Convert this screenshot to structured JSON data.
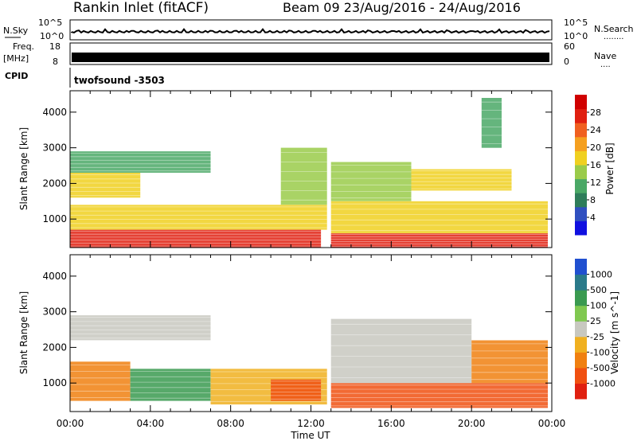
{
  "header": {
    "title": "Rankin Inlet (fitACF)",
    "beam_range": "Beam 09  23/Aug/2016 - 24/Aug/2016"
  },
  "strip_panels": {
    "nsky": {
      "label": "N.Sky",
      "ticks": [
        "10^5",
        "10^0"
      ],
      "right_label": "N.Search",
      "right_ticks": [
        "10^5",
        "10^0"
      ],
      "right_dots": "........"
    },
    "freq": {
      "label_line1": "Freq.",
      "label_line2": "[MHz]",
      "ticks": [
        "18",
        "8"
      ],
      "right_label": "Nave",
      "right_ticks": [
        "60",
        "0"
      ],
      "right_dots": "...."
    },
    "cpid": {
      "label": "CPID",
      "value": "twofsound  -3503"
    }
  },
  "x_axis": {
    "label": "Time UT",
    "ticks": [
      "00:00",
      "04:00",
      "08:00",
      "12:00",
      "16:00",
      "20:00",
      "00:00"
    ]
  },
  "colors": {
    "power_scale": [
      "#1010e0",
      "#3050c0",
      "#2e7d5a",
      "#4aa866",
      "#9acb4a",
      "#f0d020",
      "#f5a020",
      "#f06020",
      "#e02010",
      "#d00000"
    ],
    "velocity_scale": [
      "#2050d0",
      "#2a7a8a",
      "#3a9a50",
      "#80c850",
      "#c8c8c0",
      "#f0b020",
      "#f08010",
      "#f05010",
      "#e02010"
    ]
  },
  "chart_data": [
    {
      "type": "heatmap",
      "name": "Power",
      "ylabel": "Slant Range [km]",
      "xlabel": "",
      "yticks": [
        1000,
        2000,
        3000,
        4000
      ],
      "ylim": [
        200,
        4600
      ],
      "colorbar": {
        "label": "Power [dB]",
        "ticks": [
          4,
          8,
          12,
          16,
          20,
          24,
          28
        ],
        "range": [
          0,
          32
        ]
      },
      "regions": [
        {
          "t_start": 0.0,
          "t_end": 7.0,
          "r_low": 2300,
          "r_high": 2900,
          "value": 12
        },
        {
          "t_start": 0.0,
          "t_end": 3.5,
          "r_low": 1600,
          "r_high": 2300,
          "value": 18
        },
        {
          "t_start": 0.0,
          "t_end": 12.8,
          "r_low": 700,
          "r_high": 1400,
          "value": 16
        },
        {
          "t_start": 0.0,
          "t_end": 12.5,
          "r_low": 200,
          "r_high": 700,
          "value": 27
        },
        {
          "t_start": 10.5,
          "t_end": 12.8,
          "r_low": 1400,
          "r_high": 3000,
          "value": 14
        },
        {
          "t_start": 13.0,
          "t_end": 23.8,
          "r_low": 200,
          "r_high": 600,
          "value": 27
        },
        {
          "t_start": 13.0,
          "t_end": 23.8,
          "r_low": 600,
          "r_high": 1500,
          "value": 16
        },
        {
          "t_start": 13.0,
          "t_end": 17.0,
          "r_low": 1500,
          "r_high": 2600,
          "value": 14
        },
        {
          "t_start": 17.0,
          "t_end": 22.0,
          "r_low": 1800,
          "r_high": 2400,
          "value": 18
        },
        {
          "t_start": 20.5,
          "t_end": 21.5,
          "r_low": 3000,
          "r_high": 4400,
          "value": 10
        }
      ]
    },
    {
      "type": "heatmap",
      "name": "Velocity",
      "ylabel": "Slant Range [km]",
      "xlabel": "Time UT",
      "yticks": [
        1000,
        2000,
        3000,
        4000
      ],
      "ylim": [
        200,
        4600
      ],
      "colorbar": {
        "label": "Velocity [m s^-1]",
        "ticks": [
          1000,
          500,
          100,
          25,
          -25,
          -100,
          -500,
          -1000
        ]
      },
      "regions": [
        {
          "t_start": 0.0,
          "t_end": 7.0,
          "r_low": 2200,
          "r_high": 2900,
          "value": 0
        },
        {
          "t_start": 0.0,
          "t_end": 3.0,
          "r_low": 500,
          "r_high": 1600,
          "value": -300
        },
        {
          "t_start": 3.0,
          "t_end": 7.0,
          "r_low": 500,
          "r_high": 1400,
          "value": 200
        },
        {
          "t_start": 7.0,
          "t_end": 12.8,
          "r_low": 400,
          "r_high": 1400,
          "value": -50
        },
        {
          "t_start": 10.0,
          "t_end": 12.5,
          "r_low": 500,
          "r_high": 1100,
          "value": -400
        },
        {
          "t_start": 13.0,
          "t_end": 23.8,
          "r_low": 300,
          "r_high": 1000,
          "value": -400
        },
        {
          "t_start": 13.0,
          "t_end": 20.0,
          "r_low": 1000,
          "r_high": 2800,
          "value": 0
        },
        {
          "t_start": 20.0,
          "t_end": 23.8,
          "r_low": 1000,
          "r_high": 2200,
          "value": -300
        }
      ]
    }
  ]
}
